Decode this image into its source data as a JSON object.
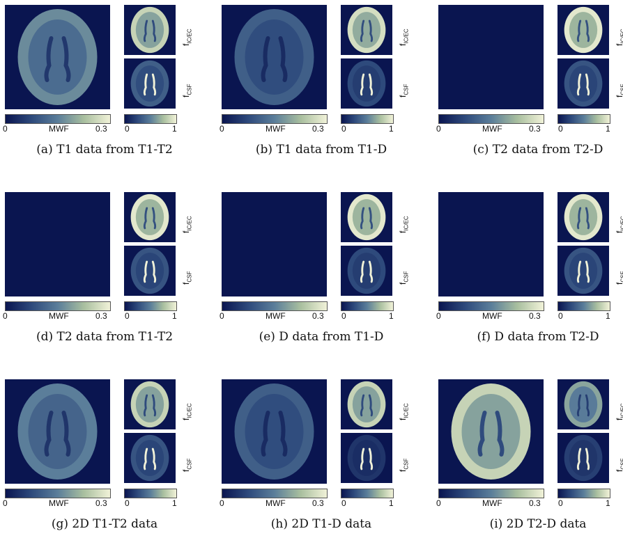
{
  "labels": {
    "mwf": "MWF",
    "f_ic_base": "f",
    "f_ic_sub": "IC/EC",
    "f_csf_base": "f",
    "f_csf_sub": "CSF"
  },
  "colorbars": {
    "mwf": {
      "min": "0",
      "max": "0.3"
    },
    "fraction": {
      "min": "0",
      "max": "1"
    }
  },
  "colors": {
    "background": "#0a1550",
    "colormap": [
      "#0a1550",
      "#2e4a7c",
      "#5b7e9a",
      "#a9bf9f",
      "#f1f2d8"
    ]
  },
  "panels": [
    {
      "caption": "(a) T1 data from T1-T2",
      "mwf_level": 0.55,
      "f_ic_level": 0.85,
      "f_csf_level": 0.35
    },
    {
      "caption": "(b) T1 data from T1-D",
      "mwf_level": 0.35,
      "f_ic_level": 0.9,
      "f_csf_level": 0.25
    },
    {
      "caption": "(c) T2 data from T2-D",
      "mwf_level": 0.0,
      "f_ic_level": 0.95,
      "f_csf_level": 0.3
    },
    {
      "caption": "(d) T2 data from T1-T2",
      "mwf_level": 0.0,
      "f_ic_level": 0.95,
      "f_csf_level": 0.3
    },
    {
      "caption": "(e) D data from T1-D",
      "mwf_level": 0.0,
      "f_ic_level": 0.95,
      "f_csf_level": 0.25
    },
    {
      "caption": "(f) D data from T2-D",
      "mwf_level": 0.0,
      "f_ic_level": 0.95,
      "f_csf_level": 0.3
    },
    {
      "caption": "(g) 2D T1-T2 data",
      "mwf_level": 0.5,
      "f_ic_level": 0.85,
      "f_csf_level": 0.3
    },
    {
      "caption": "(h) 2D T1-D data",
      "mwf_level": 0.35,
      "f_ic_level": 0.85,
      "f_csf_level": 0.15
    },
    {
      "caption": "(i) 2D T2-D data",
      "mwf_level": 0.85,
      "f_ic_level": 0.65,
      "f_csf_level": 0.2
    }
  ]
}
